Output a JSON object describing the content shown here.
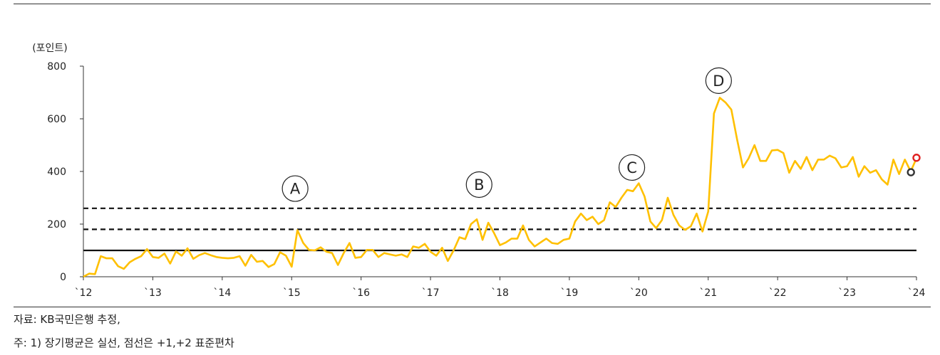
{
  "chart_data": {
    "type": "line",
    "ylabel": "(포인트)",
    "ylim": [
      0,
      800
    ],
    "yticks": [
      "0",
      "200",
      "400",
      "600",
      "800"
    ],
    "xlim": [
      2012,
      2024
    ],
    "xticks": [
      {
        "x": 2012,
        "label": "`12"
      },
      {
        "x": 2013,
        "label": "`13"
      },
      {
        "x": 2014,
        "label": "`14"
      },
      {
        "x": 2015,
        "label": "`15"
      },
      {
        "x": 2016,
        "label": "`16"
      },
      {
        "x": 2017,
        "label": "`17"
      },
      {
        "x": 2018,
        "label": "`18"
      },
      {
        "x": 2019,
        "label": "`19"
      },
      {
        "x": 2020,
        "label": "`20"
      },
      {
        "x": 2021,
        "label": "`21"
      },
      {
        "x": 2022,
        "label": "`22"
      },
      {
        "x": 2023,
        "label": "`23"
      },
      {
        "x": 2024,
        "label": "`24"
      }
    ],
    "series": [
      {
        "color": "#FFC000",
        "x": [
          2012.0,
          2012.083,
          2012.167,
          2012.25,
          2012.333,
          2012.417,
          2012.5,
          2012.583,
          2012.667,
          2012.75,
          2012.833,
          2012.917,
          2013.0,
          2013.083,
          2013.167,
          2013.25,
          2013.333,
          2013.417,
          2013.5,
          2013.583,
          2013.667,
          2013.75,
          2013.833,
          2013.917,
          2014.0,
          2014.083,
          2014.167,
          2014.25,
          2014.333,
          2014.417,
          2014.5,
          2014.583,
          2014.667,
          2014.75,
          2014.833,
          2014.917,
          2015.0,
          2015.083,
          2015.167,
          2015.25,
          2015.333,
          2015.417,
          2015.5,
          2015.583,
          2015.667,
          2015.75,
          2015.833,
          2015.917,
          2016.0,
          2016.083,
          2016.167,
          2016.25,
          2016.333,
          2016.417,
          2016.5,
          2016.583,
          2016.667,
          2016.75,
          2016.833,
          2016.917,
          2017.0,
          2017.083,
          2017.167,
          2017.25,
          2017.333,
          2017.417,
          2017.5,
          2017.583,
          2017.667,
          2017.75,
          2017.833,
          2017.917,
          2018.0,
          2018.083,
          2018.167,
          2018.25,
          2018.333,
          2018.417,
          2018.5,
          2018.583,
          2018.667,
          2018.75,
          2018.833,
          2018.917,
          2019.0,
          2019.083,
          2019.167,
          2019.25,
          2019.333,
          2019.417,
          2019.5,
          2019.583,
          2019.667,
          2019.75,
          2019.833,
          2019.917,
          2020.0,
          2020.083,
          2020.167,
          2020.25,
          2020.333,
          2020.417,
          2020.5,
          2020.583,
          2020.667,
          2020.75,
          2020.833,
          2020.917,
          2021.0,
          2021.083,
          2021.167,
          2021.25,
          2021.333,
          2021.417,
          2021.5,
          2021.583,
          2021.667,
          2021.75,
          2021.833,
          2021.917,
          2022.0,
          2022.083,
          2022.167,
          2022.25,
          2022.333,
          2022.417,
          2022.5,
          2022.583,
          2022.667,
          2022.75,
          2022.833,
          2022.917,
          2023.0,
          2023.083,
          2023.167,
          2023.25,
          2023.333,
          2023.417,
          2023.5,
          2023.583,
          2023.667,
          2023.75,
          2023.833,
          2023.917,
          2024.0
        ],
        "values": [
          0,
          12,
          10,
          78,
          70,
          70,
          40,
          30,
          55,
          68,
          78,
          105,
          75,
          72,
          88,
          50,
          96,
          80,
          108,
          68,
          82,
          90,
          82,
          75,
          72,
          70,
          72,
          78,
          42,
          83,
          57,
          60,
          37,
          48,
          93,
          80,
          38,
          177,
          128,
          102,
          100,
          112,
          95,
          90,
          45,
          90,
          128,
          72,
          75,
          102,
          102,
          75,
          90,
          85,
          80,
          85,
          75,
          115,
          110,
          125,
          95,
          80,
          110,
          60,
          100,
          150,
          143,
          200,
          218,
          140,
          205,
          165,
          120,
          130,
          145,
          145,
          195,
          140,
          115,
          130,
          145,
          128,
          125,
          140,
          145,
          210,
          240,
          215,
          228,
          200,
          215,
          283,
          265,
          300,
          330,
          325,
          355,
          305,
          210,
          185,
          215,
          300,
          235,
          195,
          178,
          192,
          240,
          172,
          248,
          620,
          680,
          662,
          635,
          520,
          415,
          450,
          500,
          440,
          440,
          480,
          482,
          470,
          395,
          440,
          410,
          455,
          405,
          445,
          445,
          460,
          450,
          415,
          420,
          455,
          380,
          420,
          395,
          405,
          370,
          350,
          445,
          390,
          445,
          400,
          450
        ]
      }
    ],
    "reference_lines": [
      {
        "value": 100,
        "style": "solid"
      },
      {
        "value": 180,
        "style": "dashed"
      },
      {
        "value": 260,
        "style": "dashed"
      }
    ],
    "annotations": [
      {
        "label": "A",
        "x": 2015.05,
        "y": 335
      },
      {
        "label": "B",
        "x": 2017.7,
        "y": 350
      },
      {
        "label": "C",
        "x": 2019.9,
        "y": 415
      },
      {
        "label": "D",
        "x": 2021.15,
        "y": 745
      }
    ],
    "end_markers": [
      {
        "x": 2023.92,
        "y": 397,
        "color": "#333333"
      },
      {
        "x": 2024.0,
        "y": 452,
        "color": "#E02020"
      }
    ],
    "grid": false
  },
  "notes": {
    "source": "자료: KB국민은행 추정,",
    "footnote": "주: 1) 장기평균은 실선, 점선은 +1,+2 표준편차"
  }
}
